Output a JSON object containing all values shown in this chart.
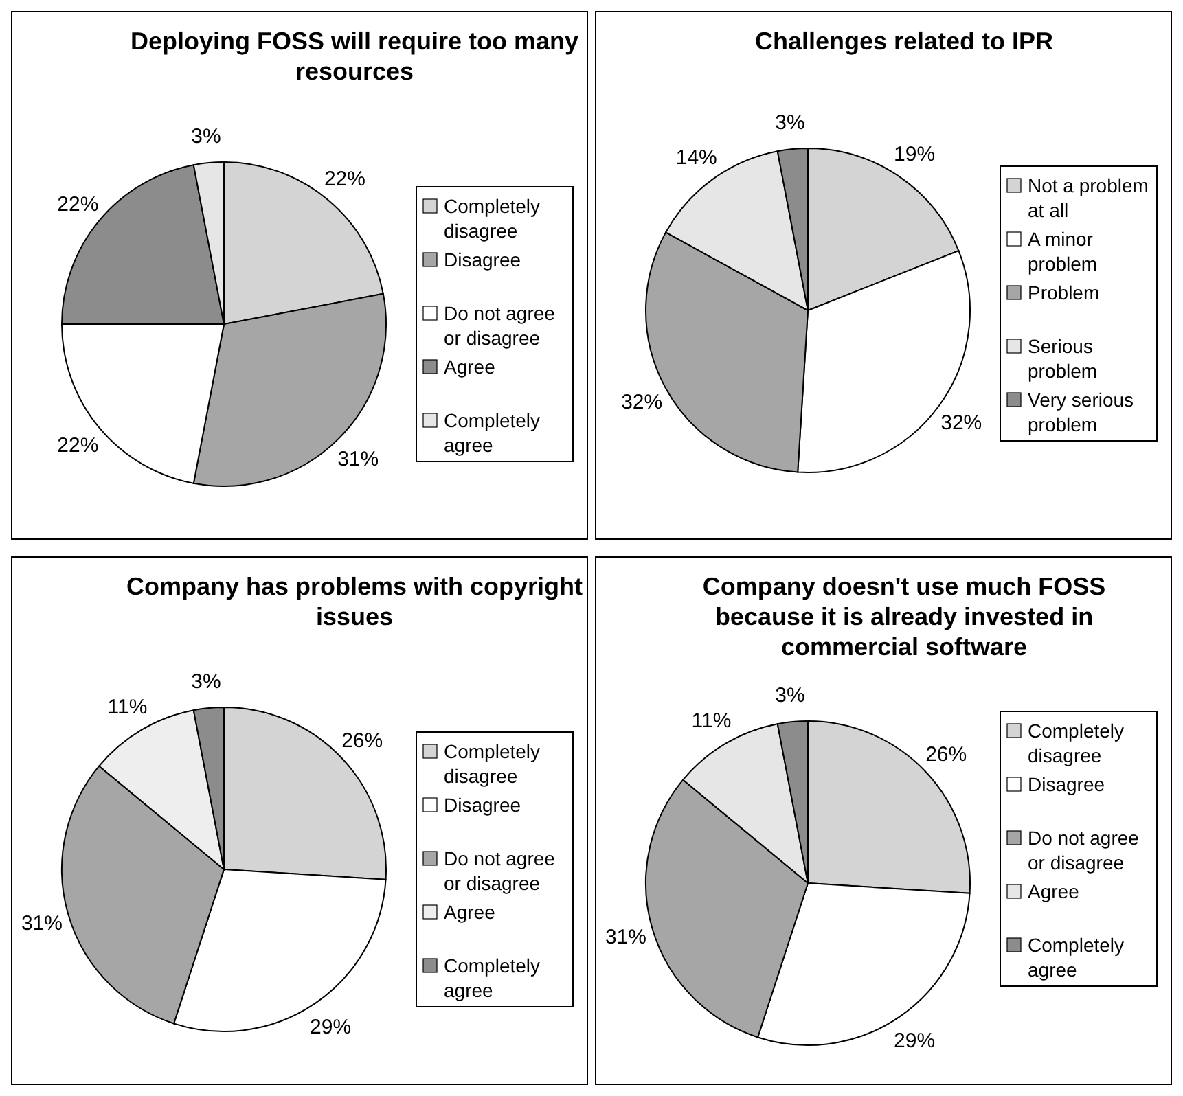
{
  "chart_data": [
    {
      "type": "pie",
      "title": "Deploying FOSS will require too many resources",
      "categories": [
        "Completely disagree",
        "Disagree",
        "Do not agree or disagree",
        "Agree",
        "Completely agree"
      ],
      "values": [
        22,
        31,
        22,
        22,
        3
      ],
      "value_labels": [
        "22%",
        "31%",
        "22%",
        "22%",
        "3%"
      ],
      "colors": [
        "#d4d4d4",
        "#a6a6a6",
        "#ffffff",
        "#8c8c8c",
        "#e6e6e6"
      ],
      "legend": "right"
    },
    {
      "type": "pie",
      "title": "Challenges related to IPR",
      "categories": [
        "Not a problem at all",
        "A minor problem",
        "Problem",
        "Serious problem",
        "Very serious problem"
      ],
      "values": [
        19,
        32,
        32,
        14,
        3
      ],
      "value_labels": [
        "19%",
        "32%",
        "32%",
        "14%",
        "3%"
      ],
      "colors": [
        "#d4d4d4",
        "#ffffff",
        "#a6a6a6",
        "#e6e6e6",
        "#8c8c8c"
      ],
      "legend": "right"
    },
    {
      "type": "pie",
      "title": "Company has problems with copyright issues",
      "categories": [
        "Completely disagree",
        "Disagree",
        "Do not agree or disagree",
        "Agree",
        "Completely agree"
      ],
      "values": [
        26,
        29,
        31,
        11,
        3
      ],
      "value_labels": [
        "26%",
        "29%",
        "31%",
        "11%",
        "3%"
      ],
      "colors": [
        "#d4d4d4",
        "#ffffff",
        "#a6a6a6",
        "#eeeeee",
        "#8c8c8c"
      ],
      "legend": "right"
    },
    {
      "type": "pie",
      "title": "Company doesn't use much FOSS because it is already invested in commercial software",
      "categories": [
        "Completely disagree",
        "Disagree",
        "Do not agree or disagree",
        "Agree",
        "Completely agree"
      ],
      "values": [
        26,
        29,
        31,
        11,
        3
      ],
      "value_labels": [
        "26%",
        "29%",
        "31%",
        "11%",
        "3%"
      ],
      "colors": [
        "#d4d4d4",
        "#ffffff",
        "#a6a6a6",
        "#e6e6e6",
        "#8c8c8c"
      ],
      "legend": "right"
    }
  ]
}
